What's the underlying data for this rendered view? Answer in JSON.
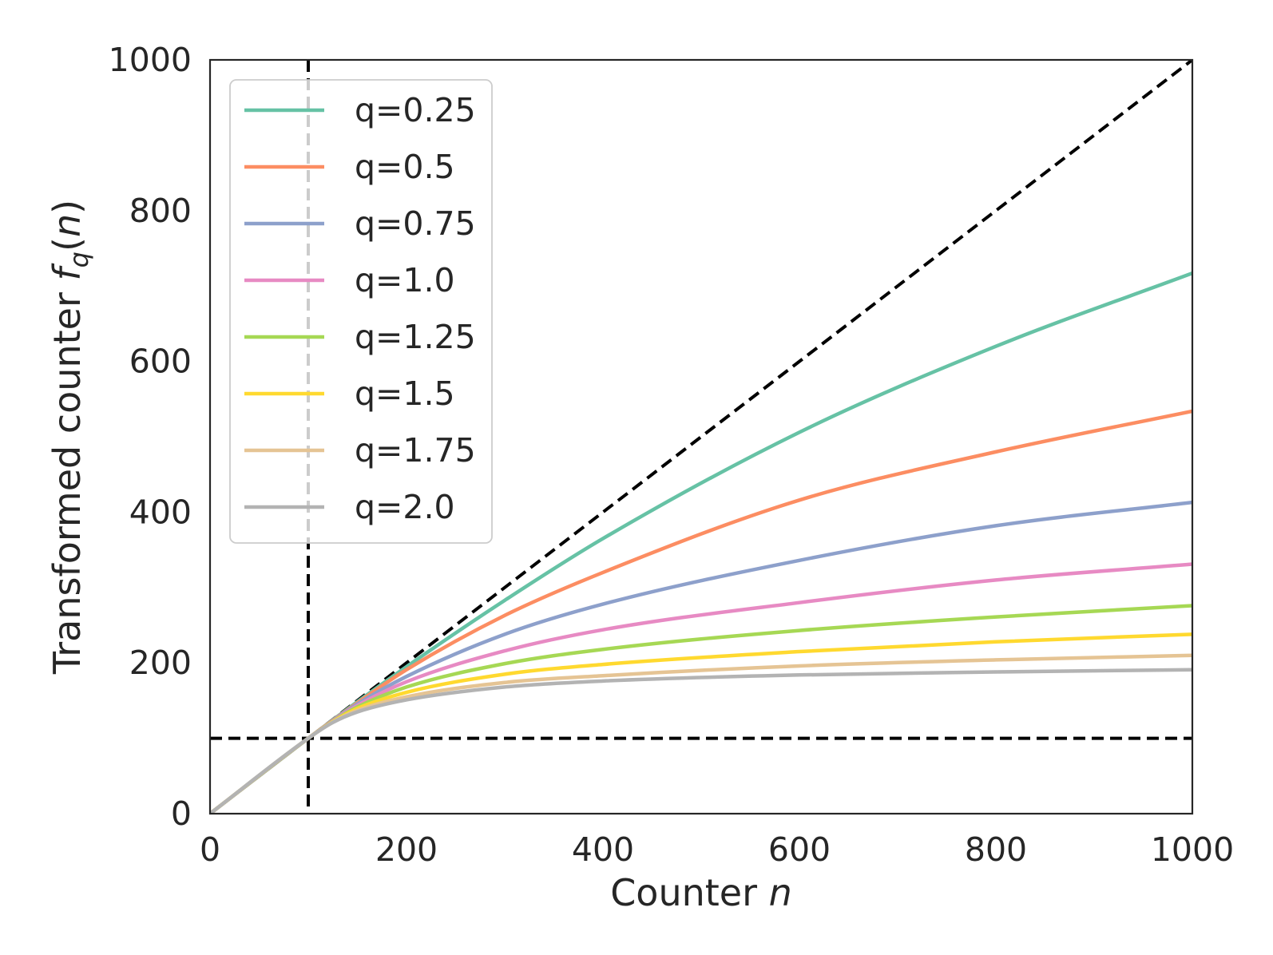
{
  "chart_data": {
    "type": "line",
    "xlabel": "Counter",
    "xlabel_var": "n",
    "ylabel": "Transformed counter",
    "ylabel_func": "f",
    "ylabel_sub": "q",
    "ylabel_var": "n",
    "xlim": [
      0,
      1000
    ],
    "ylim": [
      0,
      1000
    ],
    "xticks": [
      0,
      200,
      400,
      600,
      800,
      1000
    ],
    "yticks": [
      0,
      200,
      400,
      600,
      800,
      1000
    ],
    "xtick_labels": [
      "0",
      "200",
      "400",
      "600",
      "800",
      "1000"
    ],
    "ytick_labels": [
      "0",
      "200",
      "400",
      "600",
      "800",
      "1000"
    ],
    "grid": false,
    "legend_position": "top-left",
    "x": [
      0,
      100,
      125,
      150,
      200,
      300,
      400,
      600,
      800,
      1000
    ],
    "series": [
      {
        "name": "q=0.25",
        "color": "#66c2a5",
        "values": [
          0,
          100,
          124.5,
          148.5,
          195,
          283,
          365,
          506,
          620,
          717
        ]
      },
      {
        "name": "q=0.5",
        "color": "#fc8d62",
        "values": [
          0,
          100,
          124,
          147,
          191,
          263,
          320,
          416,
          480,
          534
        ]
      },
      {
        "name": "q=0.75",
        "color": "#8da0cb",
        "values": [
          0,
          100,
          123.5,
          145.5,
          182,
          238,
          278,
          336,
          382,
          413
        ]
      },
      {
        "name": "q=1.0",
        "color": "#e78ac3",
        "values": [
          0,
          100,
          123,
          143.5,
          175,
          216,
          244,
          280,
          310,
          331
        ]
      },
      {
        "name": "q=1.25",
        "color": "#a6d854",
        "values": [
          0,
          100,
          122.5,
          141.5,
          168,
          199,
          218,
          243,
          261,
          276
        ]
      },
      {
        "name": "q=1.5",
        "color": "#ffd92f",
        "values": [
          0,
          100,
          122,
          139.5,
          161,
          185,
          198,
          215,
          228,
          238
        ]
      },
      {
        "name": "q=1.75",
        "color": "#e5c494",
        "values": [
          0,
          100,
          121.5,
          137,
          155,
          174,
          183,
          196,
          204,
          210
        ]
      },
      {
        "name": "q=2.0",
        "color": "#b3b3b3",
        "values": [
          0,
          100,
          121,
          135,
          151,
          168,
          176,
          184,
          188,
          191
        ]
      }
    ],
    "reference_lines": [
      {
        "kind": "diagonal",
        "from": [
          0,
          0
        ],
        "to": [
          1000,
          1000
        ],
        "color": "#000000",
        "style": "dashed"
      },
      {
        "kind": "vertical",
        "x": 100,
        "color": "#000000",
        "style": "dashed"
      },
      {
        "kind": "horizontal",
        "y": 100,
        "color": "#000000",
        "style": "dashed"
      }
    ]
  }
}
